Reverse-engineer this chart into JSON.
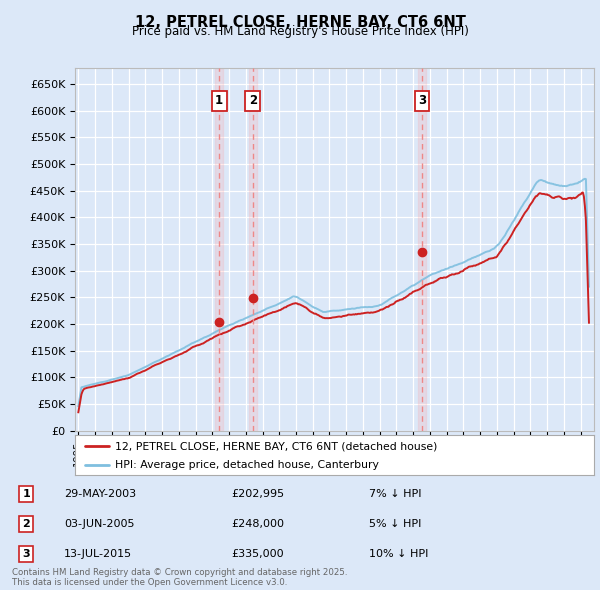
{
  "title": "12, PETREL CLOSE, HERNE BAY, CT6 6NT",
  "subtitle": "Price paid vs. HM Land Registry's House Price Index (HPI)",
  "ylim": [
    0,
    680000
  ],
  "yticks": [
    0,
    50000,
    100000,
    150000,
    200000,
    250000,
    300000,
    350000,
    400000,
    450000,
    500000,
    550000,
    600000,
    650000
  ],
  "xlim_start": 1994.8,
  "xlim_end": 2025.8,
  "background_color": "#dce8f8",
  "plot_bg_color": "#dce8f8",
  "grid_color": "#ffffff",
  "hpi_color": "#7fbfdf",
  "price_color": "#cc2222",
  "sale_vline_color": "#ee8888",
  "transactions": [
    {
      "id": 1,
      "date_str": "29-MAY-2003",
      "year": 2003.41,
      "price": 202995,
      "pct": "7%",
      "dir": "↓"
    },
    {
      "id": 2,
      "date_str": "03-JUN-2005",
      "year": 2005.42,
      "price": 248000,
      "pct": "5%",
      "dir": "↓"
    },
    {
      "id": 3,
      "date_str": "13-JUL-2015",
      "year": 2015.53,
      "price": 335000,
      "pct": "10%",
      "dir": "↓"
    }
  ],
  "footer_text": "Contains HM Land Registry data © Crown copyright and database right 2025.\nThis data is licensed under the Open Government Licence v3.0.",
  "legend_price_label": "12, PETREL CLOSE, HERNE BAY, CT6 6NT (detached house)",
  "legend_hpi_label": "HPI: Average price, detached house, Canterbury"
}
